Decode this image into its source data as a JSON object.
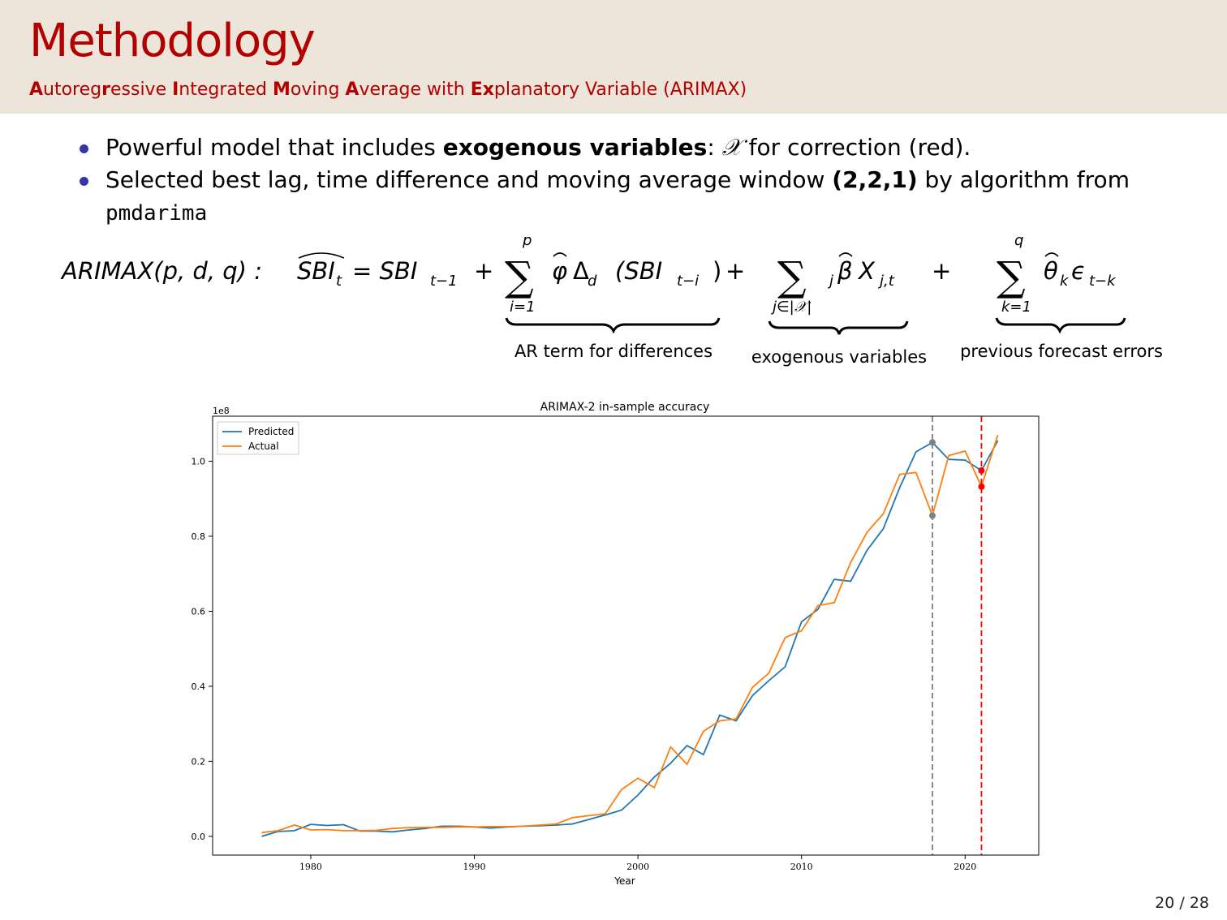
{
  "slide": {
    "title": "Methodology",
    "subtitle_parts": [
      {
        "text": "A",
        "bold": true
      },
      {
        "text": "utoreg",
        "bold": false
      },
      {
        "text": "r",
        "bold": true
      },
      {
        "text": "essive ",
        "bold": false
      },
      {
        "text": "I",
        "bold": true
      },
      {
        "text": "ntegrated ",
        "bold": false
      },
      {
        "text": "M",
        "bold": true
      },
      {
        "text": "oving ",
        "bold": false
      },
      {
        "text": "A",
        "bold": true
      },
      {
        "text": "verage with ",
        "bold": false
      },
      {
        "text": "Ex",
        "bold": true
      },
      {
        "text": "planatory Variable (ARIMAX)",
        "bold": false
      }
    ],
    "bullet1": {
      "pre": "Powerful model that includes ",
      "bold": "exogenous variables",
      "mid": ": ",
      "symbol": "𝒳",
      "post": " for correction (red)."
    },
    "bullet2": {
      "pre": "Selected best lag, time difference and moving average window ",
      "bold": "(2,2,1)",
      "post": " by algorithm from",
      "code": "pmdarima"
    },
    "formula": {
      "lhs": "ARIMAX(p, d, q) : ",
      "sbi_hat": "SBI",
      "eq": "= SBI",
      "sub_t1": "t−1",
      "plus": "+",
      "sum_top_p": "p",
      "sum_bot_i": "i=1",
      "phi_term": "φ",
      "delta": "Δ",
      "paren_sbi": "(SBI",
      "sub_ti": "t−i",
      "close": ")",
      "sum_bot_j": "j∈|𝒳|",
      "beta_term": "β",
      "xj": "X",
      "sub_jt": "j,t",
      "sum_top_q": "q",
      "sum_bot_k": "k=1",
      "theta_term": "θ",
      "eps": "ϵ",
      "sub_tk": "t−k",
      "brace_ar": "AR term for differences",
      "brace_exo": "exogenous variables",
      "brace_prev": "previous forecast errors"
    },
    "page": "20 / 28"
  },
  "chart_data": {
    "type": "line",
    "title": "ARIMAX-2 in-sample accuracy",
    "xlabel": "Year",
    "ylabel": "",
    "y_multiplier_label": "1e8",
    "xlim": [
      1974,
      2024.5
    ],
    "ylim": [
      -0.05,
      1.12
    ],
    "xticks": [
      1980,
      1990,
      2000,
      2010,
      2020
    ],
    "yticks": [
      0.0,
      0.2,
      0.4,
      0.6,
      0.8,
      1.0
    ],
    "ytick_labels": [
      "0.0",
      "0.2",
      "0.4",
      "0.6",
      "0.8",
      "1.0"
    ],
    "legend_position": "top-left",
    "x": [
      1977,
      1978,
      1979,
      1980,
      1981,
      1982,
      1983,
      1984,
      1985,
      1986,
      1987,
      1988,
      1989,
      1990,
      1991,
      1992,
      1993,
      1994,
      1995,
      1996,
      1997,
      1998,
      1999,
      2000,
      2001,
      2002,
      2003,
      2004,
      2005,
      2006,
      2007,
      2008,
      2009,
      2010,
      2011,
      2012,
      2013,
      2014,
      2015,
      2016,
      2017,
      2018,
      2019,
      2020,
      2021,
      2022
    ],
    "series": [
      {
        "name": "Predicted",
        "color": "#1f77b4",
        "values": [
          0.0,
          0.013,
          0.015,
          0.032,
          0.029,
          0.031,
          0.014,
          0.014,
          0.012,
          0.017,
          0.021,
          0.027,
          0.027,
          0.025,
          0.022,
          0.025,
          0.027,
          0.028,
          0.03,
          0.033,
          0.045,
          0.057,
          0.07,
          0.11,
          0.158,
          0.195,
          0.242,
          0.218,
          0.323,
          0.308,
          0.375,
          0.415,
          0.452,
          0.572,
          0.605,
          0.685,
          0.68,
          0.762,
          0.82,
          0.93,
          1.025,
          1.05,
          1.005,
          1.003,
          0.975,
          1.055
        ]
      },
      {
        "name": "Actual",
        "color": "#ff7f0e",
        "values": [
          0.01,
          0.015,
          0.03,
          0.017,
          0.018,
          0.015,
          0.015,
          0.016,
          0.021,
          0.023,
          0.024,
          0.024,
          0.025,
          0.025,
          0.026,
          0.026,
          0.027,
          0.03,
          0.033,
          0.05,
          0.055,
          0.06,
          0.125,
          0.155,
          0.13,
          0.238,
          0.192,
          0.28,
          0.308,
          0.313,
          0.397,
          0.435,
          0.53,
          0.548,
          0.615,
          0.623,
          0.73,
          0.81,
          0.86,
          0.965,
          0.97,
          0.855,
          1.015,
          1.027,
          0.932,
          1.07
        ]
      }
    ],
    "vlines": [
      {
        "x": 2018,
        "color": "#808080",
        "style": "dashed"
      },
      {
        "x": 2021,
        "color": "#ff0000",
        "style": "dashed"
      }
    ],
    "markers": [
      {
        "x": 2018,
        "y": 1.05,
        "color": "#808080"
      },
      {
        "x": 2018,
        "y": 0.855,
        "color": "#808080"
      },
      {
        "x": 2021,
        "y": 0.975,
        "color": "#ff0000"
      },
      {
        "x": 2021,
        "y": 0.932,
        "color": "#ff0000"
      }
    ]
  }
}
